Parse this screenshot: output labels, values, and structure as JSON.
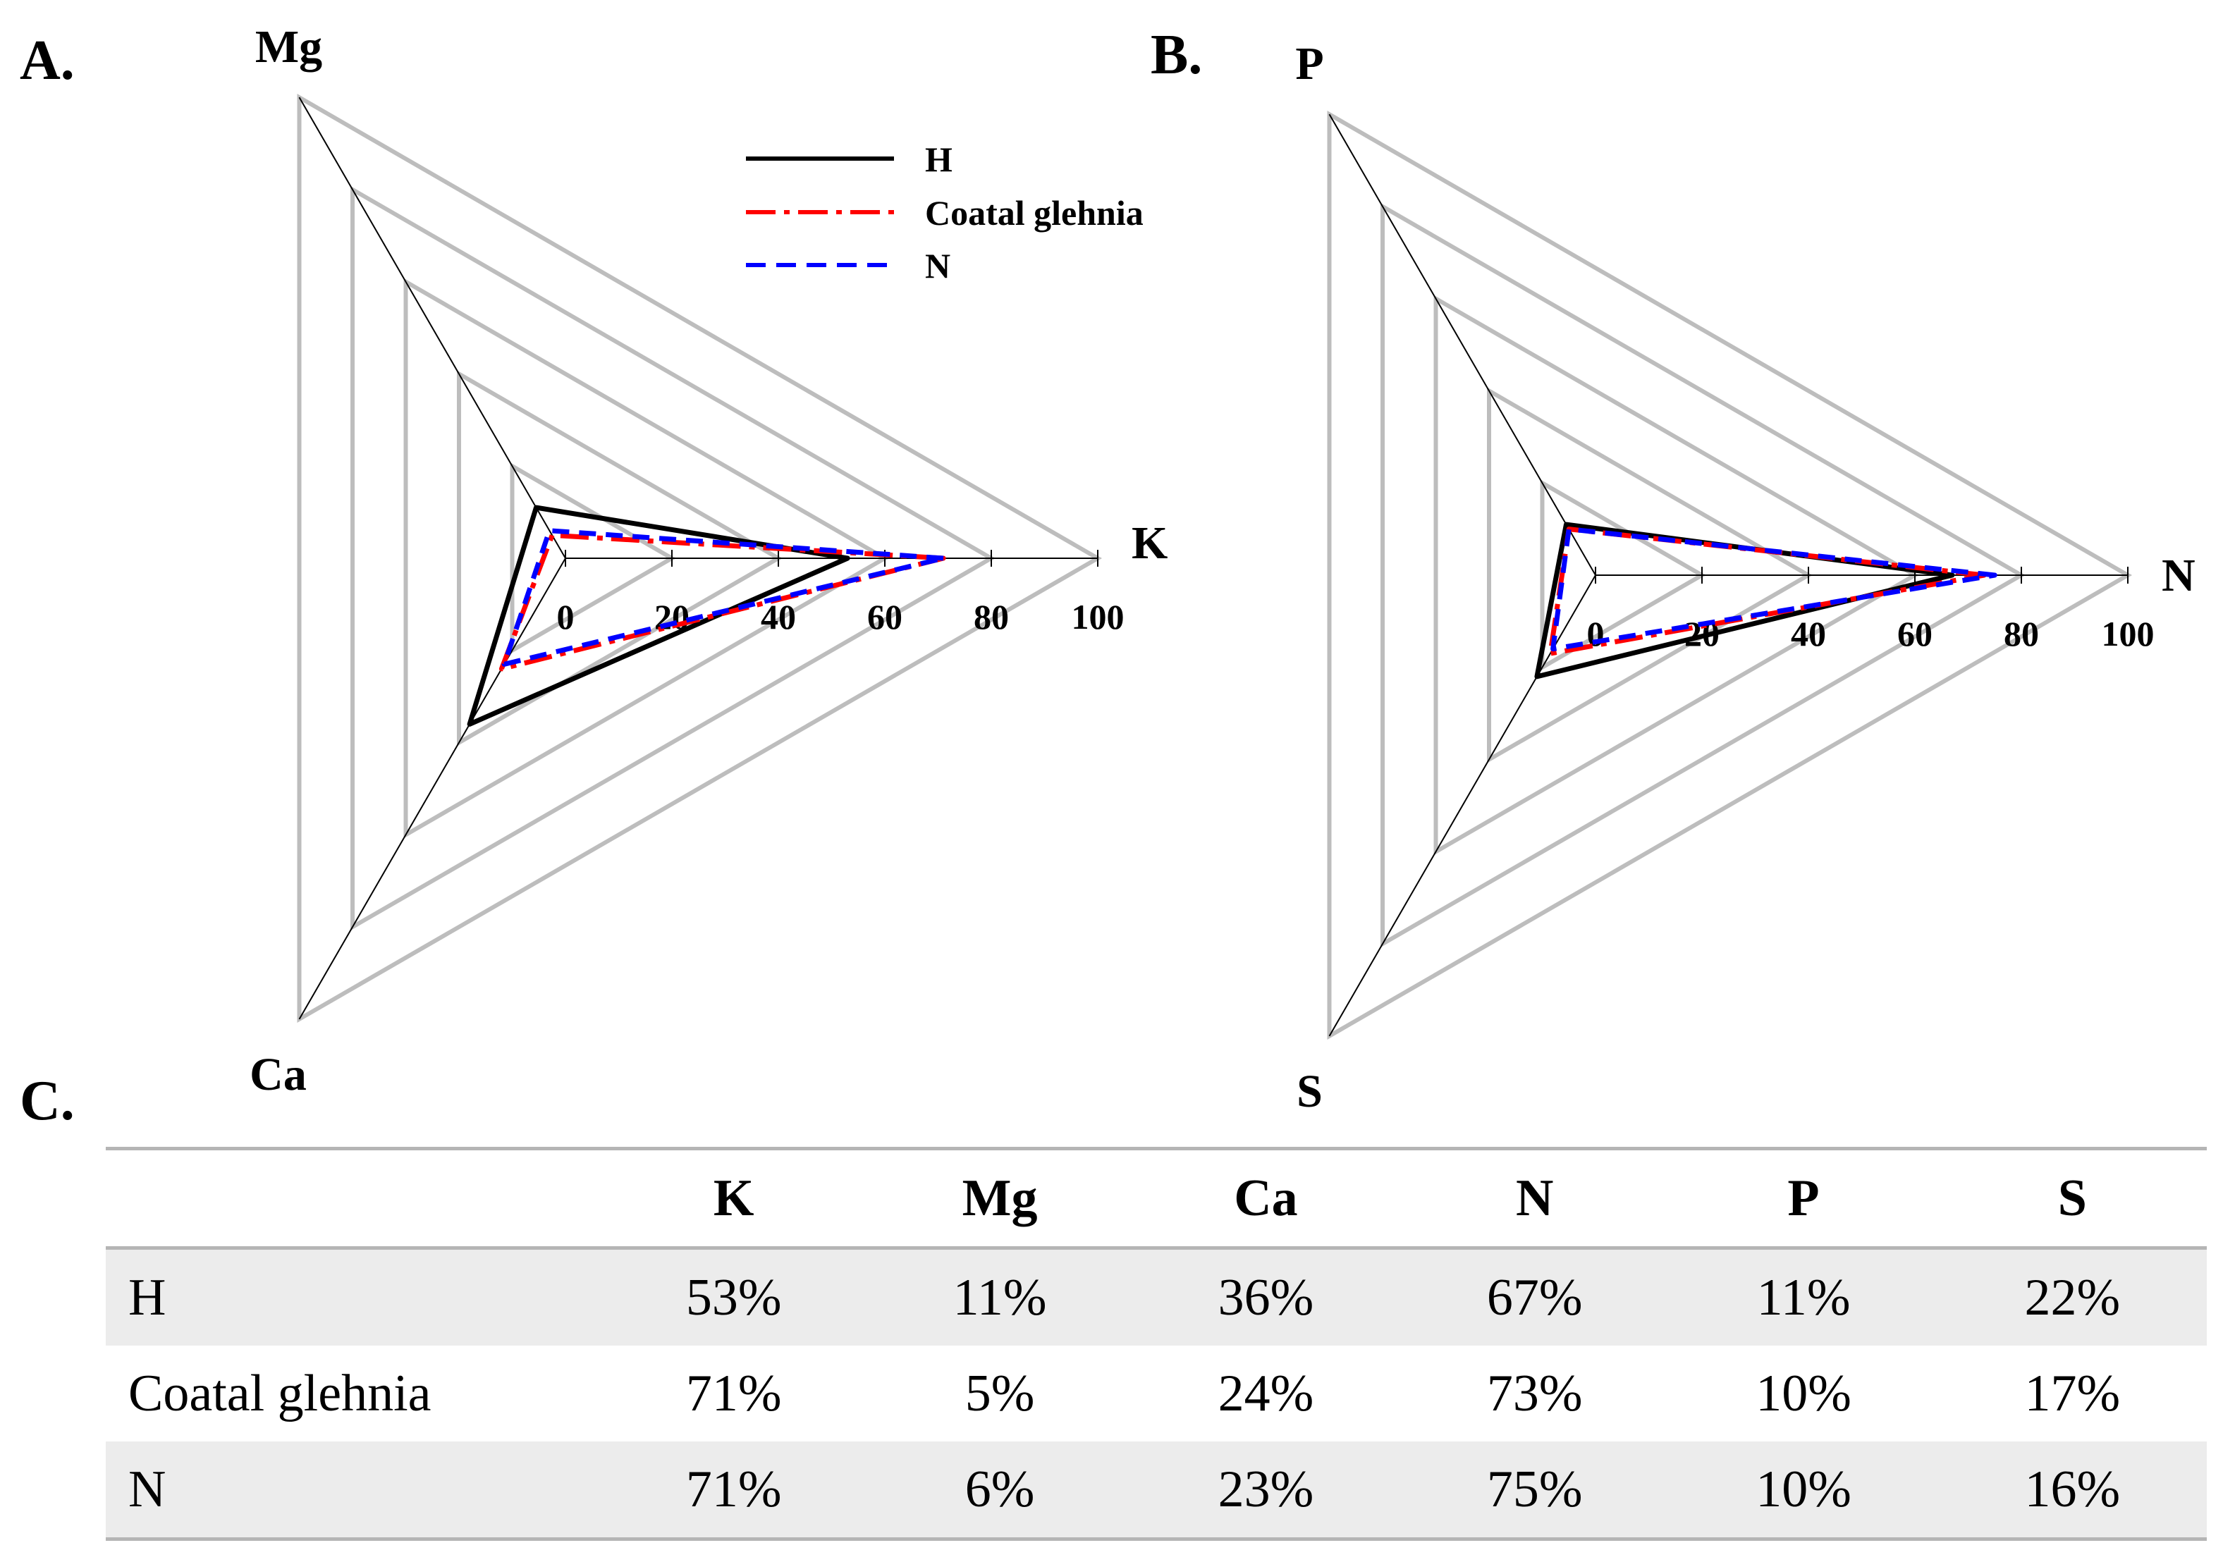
{
  "panels": {
    "a_label": "A.",
    "b_label": "B.",
    "c_label": "C."
  },
  "legend": {
    "items": [
      {
        "label": "H",
        "color": "#000000",
        "dash": "solid"
      },
      {
        "label": "Coatal glehnia",
        "color": "#ff0000",
        "dash": "dashdot"
      },
      {
        "label": "N",
        "color": "#0000ff",
        "dash": "dashed"
      }
    ]
  },
  "chart_data": [
    {
      "type": "radar",
      "panel": "A.",
      "axes": [
        "K",
        "Mg",
        "Ca"
      ],
      "ticks": [
        "0",
        "20",
        "40",
        "60",
        "80",
        "100"
      ],
      "range": [
        0,
        100
      ],
      "grid_levels": [
        20,
        40,
        60,
        80,
        100
      ],
      "series": [
        {
          "name": "H",
          "values": [
            53,
            11,
            36
          ]
        },
        {
          "name": "Coatal glehnia",
          "values": [
            71,
            5,
            24
          ]
        },
        {
          "name": "N",
          "values": [
            71,
            6,
            23
          ]
        }
      ]
    },
    {
      "type": "radar",
      "panel": "B.",
      "axes": [
        "N",
        "P",
        "S"
      ],
      "ticks": [
        "0",
        "20",
        "40",
        "60",
        "80",
        "100"
      ],
      "range": [
        0,
        100
      ],
      "grid_levels": [
        20,
        40,
        60,
        80,
        100
      ],
      "series": [
        {
          "name": "H",
          "values": [
            67,
            11,
            22
          ]
        },
        {
          "name": "Coatal glehnia",
          "values": [
            73,
            10,
            17
          ]
        },
        {
          "name": "N",
          "values": [
            75,
            10,
            16
          ]
        }
      ]
    }
  ],
  "table": {
    "headers": [
      "",
      "K",
      "Mg",
      "Ca",
      "N",
      "P",
      "S"
    ],
    "rows": [
      {
        "name": "H",
        "cells": [
          "53%",
          "11%",
          "36%",
          "67%",
          "11%",
          "22%"
        ]
      },
      {
        "name": "Coatal glehnia",
        "cells": [
          "71%",
          "5%",
          "24%",
          "73%",
          "10%",
          "17%"
        ]
      },
      {
        "name": "N",
        "cells": [
          "71%",
          "6%",
          "23%",
          "75%",
          "10%",
          "16%"
        ]
      }
    ]
  }
}
